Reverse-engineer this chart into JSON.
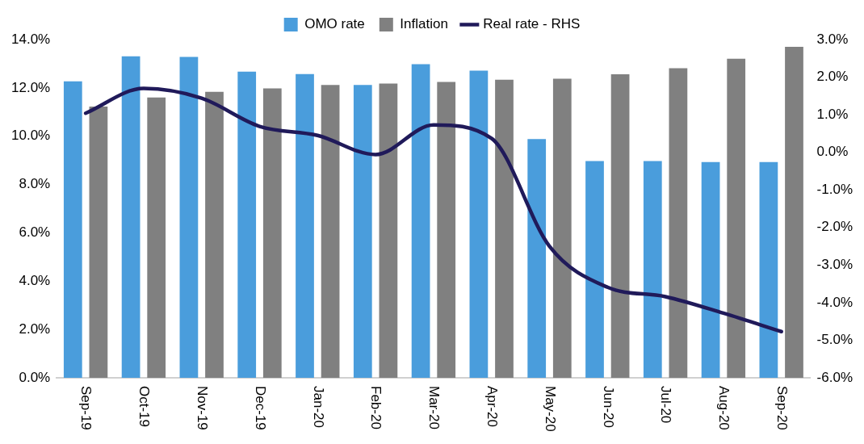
{
  "chart_data": {
    "type": "bar",
    "categories": [
      "Sep-19",
      "Oct-19",
      "Nov-19",
      "Dec-19",
      "Jan-20",
      "Feb-20",
      "Mar-20",
      "Apr-20",
      "May-20",
      "Jun-20",
      "Jul-20",
      "Aug-20",
      "Sep-20"
    ],
    "series": [
      {
        "name": "OMO rate",
        "color": "#4a9ddc",
        "values": [
          12.27,
          13.31,
          13.28,
          12.67,
          12.57,
          12.12,
          12.98,
          12.71,
          9.88,
          8.97,
          8.97,
          8.93,
          8.93
        ]
      },
      {
        "name": "Inflation",
        "color": "#808080",
        "values": [
          11.23,
          11.6,
          11.84,
          11.98,
          12.12,
          12.18,
          12.25,
          12.34,
          12.38,
          12.56,
          12.81,
          13.21,
          13.7
        ]
      },
      {
        "name": "Real rate - RHS",
        "type": "line",
        "axis": "y2",
        "color": "#201a5a",
        "values": [
          1.04,
          1.7,
          1.44,
          0.69,
          0.45,
          -0.06,
          0.73,
          0.37,
          -2.5,
          -3.59,
          -3.84,
          -4.28,
          -4.77
        ]
      }
    ],
    "ylim": [
      0,
      14
    ],
    "yticks": [
      {
        "value": 0,
        "label": "0.0%"
      },
      {
        "value": 2,
        "label": "2.0%"
      },
      {
        "value": 4,
        "label": "4.0%"
      },
      {
        "value": 6,
        "label": "6.0%"
      },
      {
        "value": 8,
        "label": "8.0%"
      },
      {
        "value": 10,
        "label": "10.0%"
      },
      {
        "value": 12,
        "label": "12.0%"
      },
      {
        "value": 14,
        "label": "14.0%"
      }
    ],
    "y2lim": [
      -6,
      3
    ],
    "y2ticks": [
      {
        "value": -6,
        "label": "-6.0%"
      },
      {
        "value": -5,
        "label": "-5.0%"
      },
      {
        "value": -4,
        "label": "-4.0%"
      },
      {
        "value": -3,
        "label": "-3.0%"
      },
      {
        "value": -2,
        "label": "-2.0%"
      },
      {
        "value": -1,
        "label": "-1.0%"
      },
      {
        "value": 0,
        "label": "0.0%"
      },
      {
        "value": 1,
        "label": "1.0%"
      },
      {
        "value": 2,
        "label": "2.0%"
      },
      {
        "value": 3,
        "label": "3.0%"
      }
    ],
    "legend": "top",
    "grid": false,
    "marker": "none",
    "line_style": "solid"
  }
}
